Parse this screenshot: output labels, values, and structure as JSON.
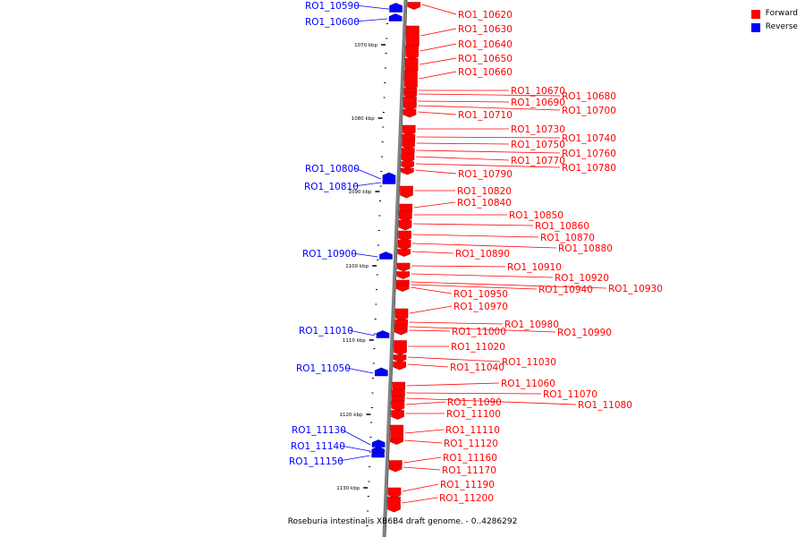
{
  "legend": [
    {
      "label": "Forward",
      "color": "#ff0000"
    },
    {
      "label": "Reverse",
      "color": "#0000ff"
    }
  ],
  "caption": "Roseburia intestinalis XB6B4 draft genome. - 0..4286292",
  "colors": {
    "forward": "#ff0000",
    "forward_dark": "#b40000",
    "reverse": "#0000ff",
    "axis": "#808080"
  },
  "ticks": [
    "1070 kbp",
    "1080 kbp",
    "1090 kbp",
    "1100 kbp",
    "1110 kbp",
    "1120 kbp",
    "1130 kbp"
  ],
  "genes": [
    {
      "id": "RO1_10590",
      "strand": "reverse"
    },
    {
      "id": "RO1_10600",
      "strand": "reverse"
    },
    {
      "id": "RO1_10620",
      "strand": "forward"
    },
    {
      "id": "RO1_10630",
      "strand": "forward"
    },
    {
      "id": "RO1_10640",
      "strand": "forward"
    },
    {
      "id": "RO1_10650",
      "strand": "forward"
    },
    {
      "id": "RO1_10660",
      "strand": "forward"
    },
    {
      "id": "RO1_10670",
      "strand": "forward"
    },
    {
      "id": "RO1_10680",
      "strand": "forward"
    },
    {
      "id": "RO1_10690",
      "strand": "forward"
    },
    {
      "id": "RO1_10700",
      "strand": "forward"
    },
    {
      "id": "RO1_10710",
      "strand": "forward"
    },
    {
      "id": "RO1_10730",
      "strand": "forward"
    },
    {
      "id": "RO1_10740",
      "strand": "forward"
    },
    {
      "id": "RO1_10750",
      "strand": "forward"
    },
    {
      "id": "RO1_10760",
      "strand": "forward"
    },
    {
      "id": "RO1_10770",
      "strand": "forward"
    },
    {
      "id": "RO1_10780",
      "strand": "forward"
    },
    {
      "id": "RO1_10790",
      "strand": "forward"
    },
    {
      "id": "RO1_10800",
      "strand": "reverse"
    },
    {
      "id": "RO1_10810",
      "strand": "reverse"
    },
    {
      "id": "RO1_10820",
      "strand": "forward"
    },
    {
      "id": "RO1_10840",
      "strand": "forward"
    },
    {
      "id": "RO1_10850",
      "strand": "forward"
    },
    {
      "id": "RO1_10860",
      "strand": "forward"
    },
    {
      "id": "RO1_10870",
      "strand": "forward"
    },
    {
      "id": "RO1_10880",
      "strand": "forward"
    },
    {
      "id": "RO1_10890",
      "strand": "forward"
    },
    {
      "id": "RO1_10900",
      "strand": "reverse"
    },
    {
      "id": "RO1_10910",
      "strand": "forward"
    },
    {
      "id": "RO1_10920",
      "strand": "forward"
    },
    {
      "id": "RO1_10930",
      "strand": "forward"
    },
    {
      "id": "RO1_10940",
      "strand": "forward"
    },
    {
      "id": "RO1_10950",
      "strand": "forward"
    },
    {
      "id": "RO1_10970",
      "strand": "forward"
    },
    {
      "id": "RO1_10980",
      "strand": "forward"
    },
    {
      "id": "RO1_10990",
      "strand": "forward"
    },
    {
      "id": "RO1_11000",
      "strand": "forward"
    },
    {
      "id": "RO1_11010",
      "strand": "reverse"
    },
    {
      "id": "RO1_11020",
      "strand": "forward"
    },
    {
      "id": "RO1_11030",
      "strand": "forward"
    },
    {
      "id": "RO1_11040",
      "strand": "forward"
    },
    {
      "id": "RO1_11050",
      "strand": "reverse"
    },
    {
      "id": "RO1_11060",
      "strand": "forward"
    },
    {
      "id": "RO1_11070",
      "strand": "forward"
    },
    {
      "id": "RO1_11080",
      "strand": "forward"
    },
    {
      "id": "RO1_11090",
      "strand": "forward"
    },
    {
      "id": "RO1_11100",
      "strand": "forward"
    },
    {
      "id": "RO1_11110",
      "strand": "forward"
    },
    {
      "id": "RO1_11120",
      "strand": "forward"
    },
    {
      "id": "RO1_11130",
      "strand": "reverse"
    },
    {
      "id": "RO1_11140",
      "strand": "reverse"
    },
    {
      "id": "RO1_11150",
      "strand": "reverse"
    },
    {
      "id": "RO1_11160",
      "strand": "forward"
    },
    {
      "id": "RO1_11170",
      "strand": "forward"
    },
    {
      "id": "RO1_11190",
      "strand": "forward"
    },
    {
      "id": "RO1_11200",
      "strand": "forward"
    }
  ]
}
